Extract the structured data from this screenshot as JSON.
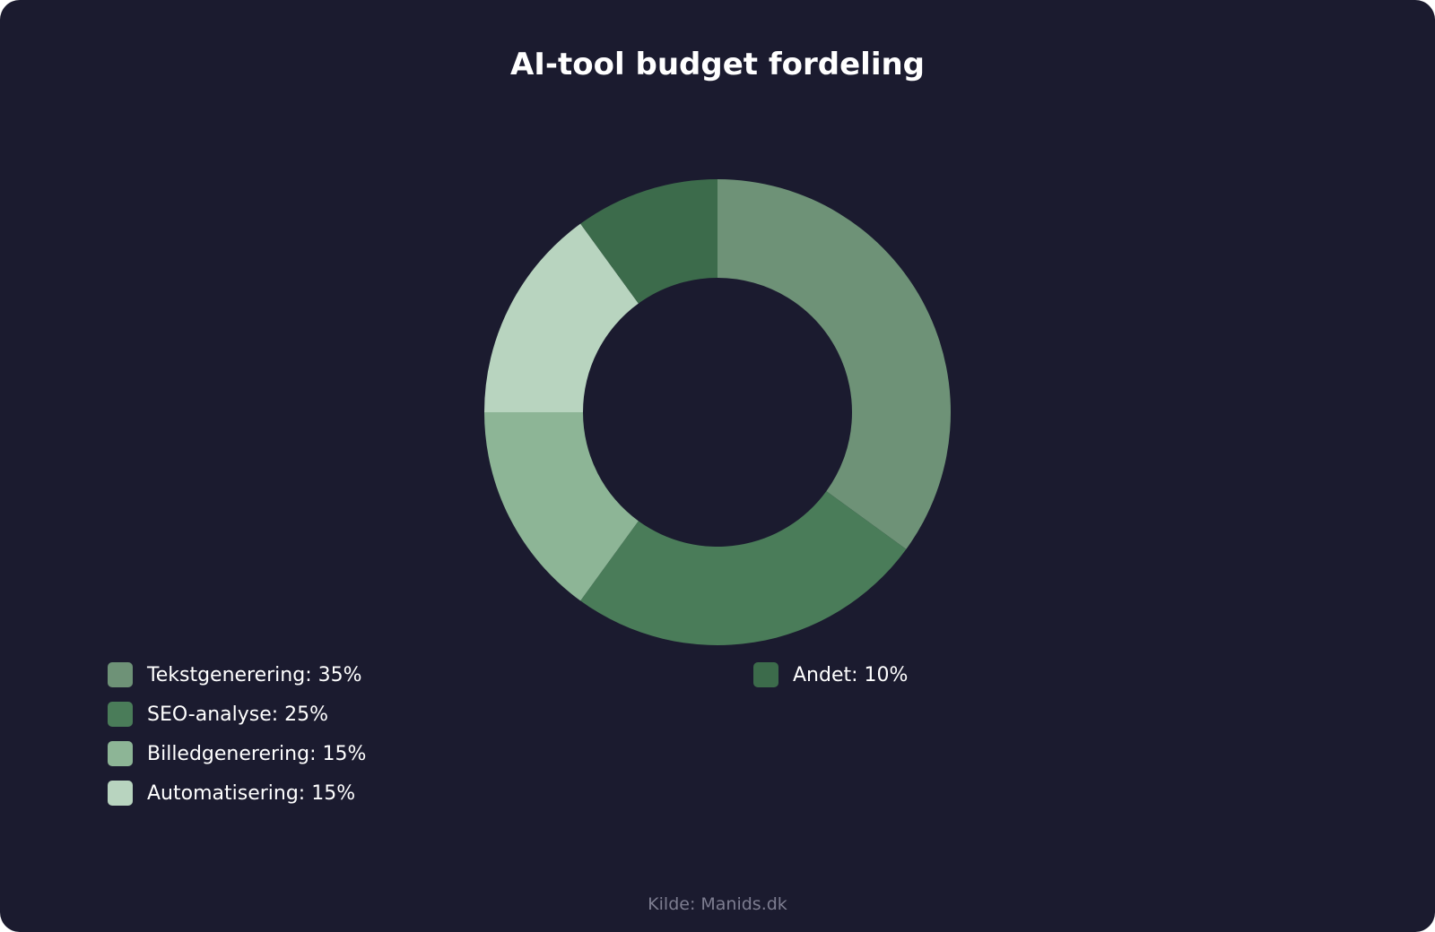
{
  "chart_data": {
    "type": "pie",
    "variant": "donut",
    "title": "AI-tool budget fordeling",
    "slices": [
      {
        "label": "Tekstgenerering",
        "value": 35,
        "color": "#6e9277",
        "legend": "Tekstgenerering: 35%"
      },
      {
        "label": "SEO-analyse",
        "value": 25,
        "color": "#4a7c59",
        "legend": "SEO-analyse: 25%"
      },
      {
        "label": "Billedgenerering",
        "value": 15,
        "color": "#8db596",
        "legend": "Billedgenerering: 15%"
      },
      {
        "label": "Automatisering",
        "value": 15,
        "color": "#b8d4bf",
        "legend": "Automatisering: 15%"
      },
      {
        "label": "Andet",
        "value": 10,
        "color": "#3c6b4b",
        "legend": "Andet: 10%"
      }
    ],
    "legend_position": "bottom"
  },
  "source": "Kilde: Manids.dk",
  "colors": {
    "background": "#1b1b2f",
    "text": "#ffffff",
    "muted": "#7d7d90"
  }
}
